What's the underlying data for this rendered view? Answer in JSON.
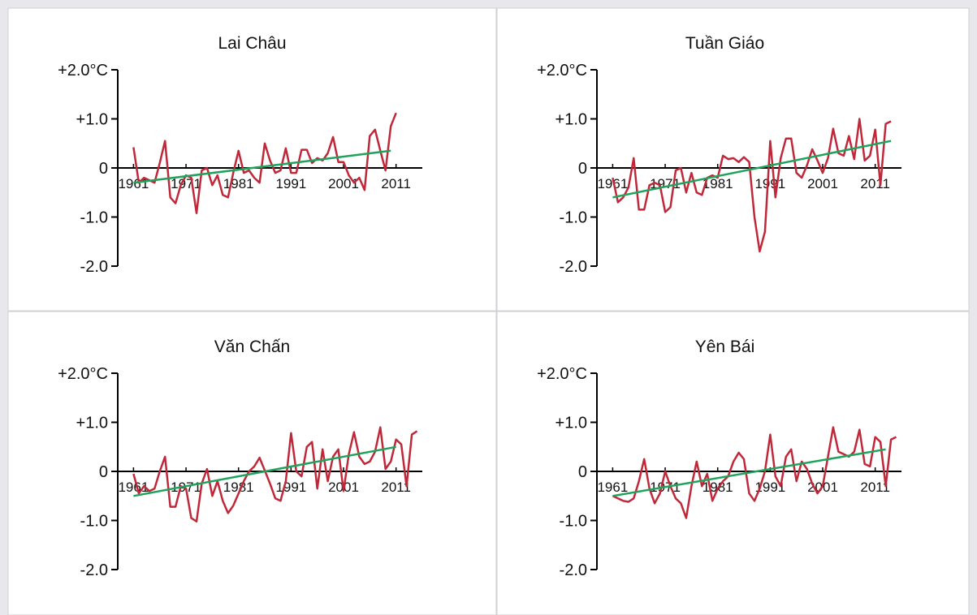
{
  "chart_data": [
    {
      "type": "line",
      "title": "Lai Châu",
      "xlim": [
        1958,
        2016
      ],
      "ylim": [
        -2,
        2
      ],
      "xticks": [
        1961,
        1971,
        1981,
        1991,
        2001,
        2011
      ],
      "yticks": [
        {
          "value": 2,
          "label": "+2.0°C"
        },
        {
          "value": 1,
          "label": "+1.0"
        },
        0,
        {
          "value": -1,
          "label": "-1.0"
        },
        {
          "value": -2,
          "label": "-2.0"
        }
      ],
      "series": [
        {
          "color": "#c0283a",
          "x": [
            1961,
            1962,
            1963,
            1964,
            1965,
            1966,
            1967,
            1968,
            1969,
            1970,
            1971,
            1972,
            1973,
            1974,
            1975,
            1976,
            1977,
            1978,
            1979,
            1980,
            1981,
            1982,
            1983,
            1984,
            1985,
            1986,
            1987,
            1988,
            1989,
            1990,
            1991,
            1992,
            1993,
            1994,
            1995,
            1996,
            1997,
            1998,
            1999,
            2000,
            2001,
            2002,
            2003,
            2004,
            2005,
            2006,
            2007,
            2008,
            2009,
            2010,
            2011
          ],
          "values": [
            0.42,
            -0.3,
            -0.2,
            -0.25,
            -0.3,
            0.1,
            0.55,
            -0.6,
            -0.72,
            -0.35,
            -0.15,
            -0.2,
            -0.92,
            -0.05,
            0,
            -0.35,
            -0.15,
            -0.55,
            -0.6,
            -0.1,
            0.35,
            -0.1,
            -0.05,
            -0.2,
            -0.3,
            0.5,
            0.15,
            -0.1,
            -0.05,
            0.4,
            -0.1,
            -0.1,
            0.37,
            0.37,
            0.1,
            0.2,
            0.15,
            0.3,
            0.63,
            0.12,
            0.12,
            -0.15,
            -0.3,
            -0.2,
            -0.45,
            0.65,
            0.78,
            0.35,
            -0.05,
            0.85,
            1.12
          ]
        },
        {
          "color": "#1fa35a",
          "x": [
            1961,
            2010
          ],
          "values": [
            -0.3,
            0.35
          ]
        }
      ]
    },
    {
      "type": "line",
      "title": "Tuần Giáo",
      "xlim": [
        1958,
        2016
      ],
      "ylim": [
        -2,
        2
      ],
      "xticks": [
        1961,
        1971,
        1981,
        1991,
        2001,
        2011
      ],
      "yticks": [
        {
          "value": 2,
          "label": "+2.0°C"
        },
        {
          "value": 1,
          "label": "+1.0"
        },
        0,
        {
          "value": -1,
          "label": "-1.0"
        },
        {
          "value": -2,
          "label": "-2.0"
        }
      ],
      "series": [
        {
          "color": "#c0283a",
          "x": [
            1961,
            1962,
            1963,
            1964,
            1965,
            1966,
            1967,
            1968,
            1969,
            1970,
            1971,
            1972,
            1973,
            1974,
            1975,
            1976,
            1977,
            1978,
            1979,
            1980,
            1981,
            1982,
            1983,
            1984,
            1985,
            1986,
            1987,
            1988,
            1989,
            1990,
            1991,
            1992,
            1993,
            1994,
            1995,
            1996,
            1997,
            1998,
            1999,
            2000,
            2001,
            2002,
            2003,
            2004,
            2005,
            2006,
            2007,
            2008,
            2009,
            2010,
            2011,
            2012,
            2013,
            2014
          ],
          "values": [
            -0.2,
            -0.7,
            -0.6,
            -0.4,
            0.2,
            -0.85,
            -0.85,
            -0.35,
            -0.3,
            -0.35,
            -0.9,
            -0.8,
            -0.05,
            0,
            -0.5,
            -0.1,
            -0.5,
            -0.55,
            -0.2,
            -0.15,
            -0.2,
            0.25,
            0.18,
            0.2,
            0.12,
            0.22,
            0.12,
            -1.0,
            -1.7,
            -1.3,
            0.55,
            -0.6,
            0.2,
            0.6,
            0.6,
            -0.1,
            -0.2,
            0.05,
            0.38,
            0.15,
            -0.1,
            0.2,
            0.8,
            0.3,
            0.25,
            0.65,
            0.18,
            1.0,
            0.15,
            0.25,
            0.78,
            -0.35,
            0.9,
            0.95
          ]
        },
        {
          "color": "#1fa35a",
          "x": [
            1961,
            2014
          ],
          "values": [
            -0.6,
            0.55
          ]
        }
      ]
    },
    {
      "type": "line",
      "title": "Văn Chấn",
      "xlim": [
        1958,
        2016
      ],
      "ylim": [
        -2,
        2
      ],
      "xticks": [
        1961,
        1971,
        1981,
        1991,
        2001,
        2011
      ],
      "yticks": [
        {
          "value": 2,
          "label": "+2.0°C"
        },
        {
          "value": 1,
          "label": "+1.0"
        },
        0,
        {
          "value": -1,
          "label": "-1.0"
        },
        {
          "value": -2,
          "label": "-2.0"
        }
      ],
      "series": [
        {
          "color": "#c0283a",
          "x": [
            1961,
            1962,
            1963,
            1964,
            1965,
            1966,
            1967,
            1968,
            1969,
            1970,
            1971,
            1972,
            1973,
            1974,
            1975,
            1976,
            1977,
            1978,
            1979,
            1980,
            1981,
            1982,
            1983,
            1984,
            1985,
            1986,
            1987,
            1988,
            1989,
            1990,
            1991,
            1992,
            1993,
            1994,
            1995,
            1996,
            1997,
            1998,
            1999,
            2000,
            2001,
            2002,
            2003,
            2004,
            2005,
            2006,
            2007,
            2008,
            2009,
            2010,
            2011,
            2012,
            2013,
            2014,
            2015
          ],
          "values": [
            -0.05,
            -0.45,
            -0.3,
            -0.4,
            -0.35,
            0,
            0.3,
            -0.72,
            -0.72,
            -0.3,
            -0.35,
            -0.95,
            -1.02,
            -0.25,
            0.05,
            -0.5,
            -0.2,
            -0.6,
            -0.85,
            -0.7,
            -0.45,
            -0.2,
            0,
            0.1,
            0.28,
            0.02,
            -0.25,
            -0.55,
            -0.6,
            -0.2,
            0.78,
            0,
            -0.1,
            0.5,
            0.6,
            -0.35,
            0.45,
            -0.2,
            0.3,
            0.45,
            -0.4,
            0.35,
            0.8,
            0.3,
            0.15,
            0.2,
            0.4,
            0.9,
            0.05,
            0.2,
            0.65,
            0.55,
            -0.3,
            0.75,
            0.82
          ]
        },
        {
          "color": "#1fa35a",
          "x": [
            1961,
            2011
          ],
          "values": [
            -0.5,
            0.5
          ]
        }
      ]
    },
    {
      "type": "line",
      "title": "Yên Bái",
      "xlim": [
        1958,
        2016
      ],
      "ylim": [
        -2,
        2
      ],
      "xticks": [
        1961,
        1971,
        1981,
        1991,
        2001,
        2011
      ],
      "yticks": [
        {
          "value": 2,
          "label": "+2.0°C"
        },
        {
          "value": 1,
          "label": "+1.0"
        },
        0,
        {
          "value": -1,
          "label": "-1.0"
        },
        {
          "value": -2,
          "label": "-2.0"
        }
      ],
      "series": [
        {
          "color": "#c0283a",
          "x": [
            1961,
            1962,
            1963,
            1964,
            1965,
            1966,
            1967,
            1968,
            1969,
            1970,
            1971,
            1972,
            1973,
            1974,
            1975,
            1976,
            1977,
            1978,
            1979,
            1980,
            1981,
            1982,
            1983,
            1984,
            1985,
            1986,
            1987,
            1988,
            1989,
            1990,
            1991,
            1992,
            1993,
            1994,
            1995,
            1996,
            1997,
            1998,
            1999,
            2000,
            2001,
            2002,
            2003,
            2004,
            2005,
            2006,
            2007,
            2008,
            2009,
            2010,
            2011,
            2012,
            2013,
            2014,
            2015
          ],
          "values": [
            -0.5,
            -0.55,
            -0.6,
            -0.62,
            -0.55,
            -0.2,
            0.25,
            -0.35,
            -0.65,
            -0.45,
            0,
            -0.3,
            -0.55,
            -0.65,
            -0.95,
            -0.3,
            0.2,
            -0.3,
            -0.05,
            -0.6,
            -0.35,
            -0.2,
            -0.1,
            0.2,
            0.38,
            0.25,
            -0.45,
            -0.6,
            -0.35,
            0,
            0.75,
            -0.1,
            -0.3,
            0.3,
            0.45,
            -0.2,
            0.2,
            0.05,
            -0.25,
            -0.45,
            -0.3,
            0.3,
            0.9,
            0.4,
            0.35,
            0.3,
            0.4,
            0.85,
            0.15,
            0.1,
            0.7,
            0.6,
            -0.3,
            0.65,
            0.7
          ]
        },
        {
          "color": "#1fa35a",
          "x": [
            1961,
            2013
          ],
          "values": [
            -0.5,
            0.45
          ]
        }
      ]
    }
  ]
}
